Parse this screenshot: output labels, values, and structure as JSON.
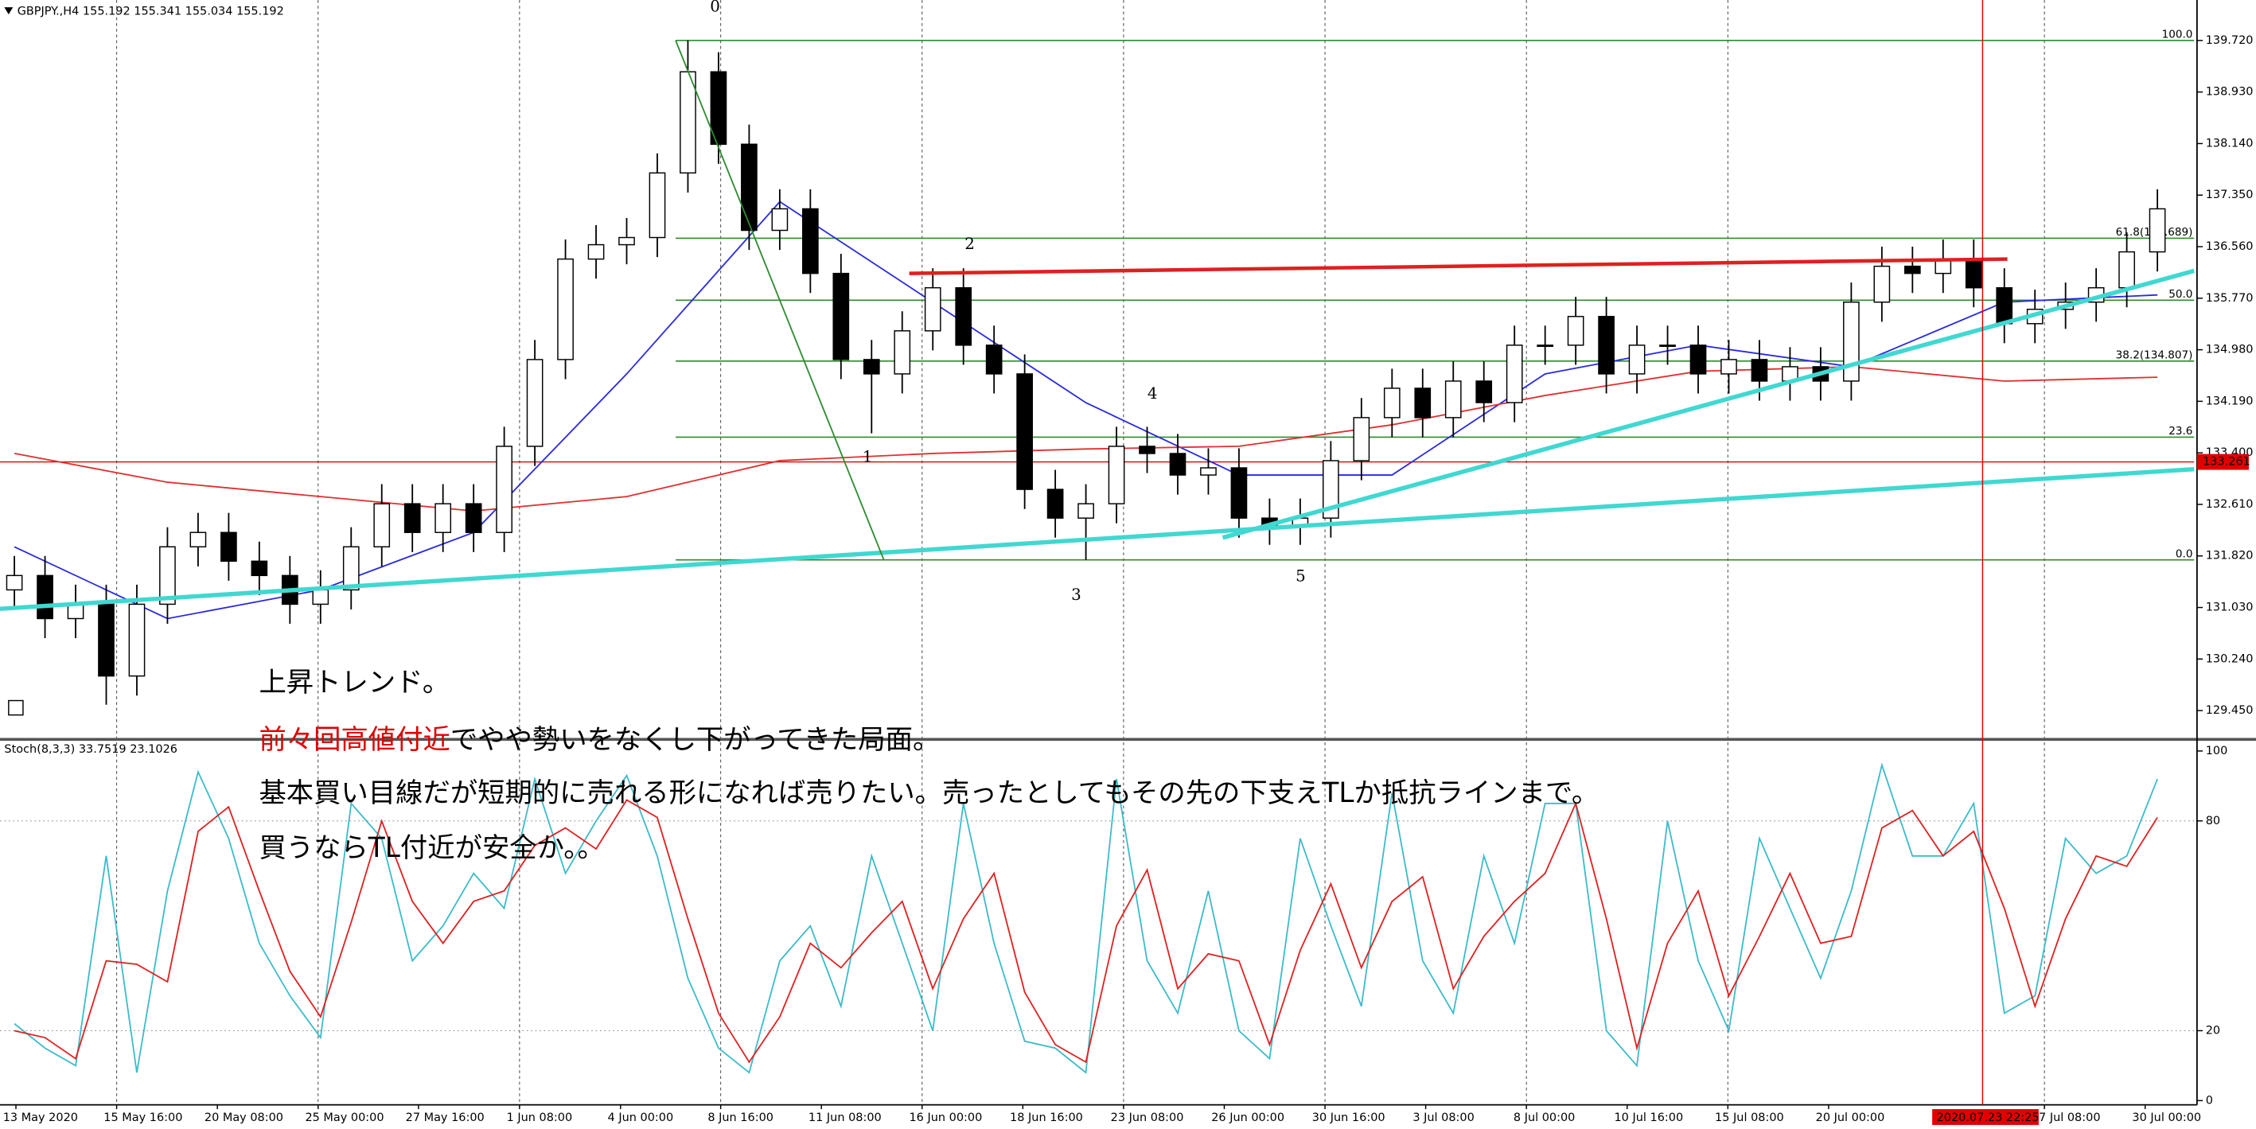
{
  "chart_data": [
    {
      "type": "candlestick",
      "title": "GBPJPY.,H4  155.192 155.341 155.034 155.192",
      "xlim": [
        -0.47,
        71.2
      ],
      "ylim": [
        129.03,
        140.34
      ],
      "yticks": [
        {
          "value": 139.72,
          "label": "139.720"
        },
        {
          "value": 138.93,
          "label": "138.930"
        },
        {
          "value": 138.14,
          "label": "138.140"
        },
        {
          "value": 137.35,
          "label": "137.350"
        },
        {
          "value": 136.56,
          "label": "136.560"
        },
        {
          "value": 135.77,
          "label": "135.770"
        },
        {
          "value": 134.98,
          "label": "134.980"
        },
        {
          "value": 134.19,
          "label": "134.190"
        },
        {
          "value": 133.4,
          "label": "133.400"
        },
        {
          "value": 132.61,
          "label": "132.610"
        },
        {
          "value": 131.82,
          "label": "131.820"
        },
        {
          "value": 131.03,
          "label": "131.030"
        },
        {
          "value": 130.24,
          "label": "130.240"
        },
        {
          "value": 129.45,
          "label": "129.450"
        }
      ],
      "up_color": "#ffffff",
      "down_color": "#000000",
      "open": [
        131.3,
        131.52,
        130.86,
        131.08,
        129.98,
        131.08,
        131.96,
        132.18,
        131.74,
        131.52,
        131.08,
        131.3,
        131.96,
        132.62,
        132.18,
        132.62,
        132.18,
        133.5,
        134.83,
        136.37,
        136.59,
        136.7,
        137.69,
        139.24,
        138.13,
        136.81,
        137.14,
        136.15,
        134.83,
        134.61,
        135.27,
        135.93,
        135.05,
        134.61,
        132.84,
        132.4,
        132.62,
        133.5,
        133.39,
        133.06,
        133.17,
        132.4,
        132.29,
        132.4,
        133.28,
        133.94,
        134.39,
        133.94,
        134.5,
        134.17,
        135.05,
        135.05,
        135.49,
        134.61,
        135.05,
        135.05,
        134.61,
        134.83,
        134.5,
        134.72,
        134.5,
        135.71,
        136.26,
        136.15,
        136.37,
        135.93,
        135.38,
        135.6,
        135.71,
        135.93,
        136.48
      ],
      "high": [
        131.82,
        131.82,
        131.38,
        131.38,
        131.38,
        132.26,
        132.48,
        132.48,
        132.04,
        131.82,
        131.6,
        132.26,
        132.92,
        132.92,
        132.92,
        132.92,
        133.8,
        135.13,
        136.67,
        136.89,
        137.0,
        137.99,
        139.72,
        139.54,
        138.43,
        137.44,
        137.44,
        136.45,
        135.13,
        135.57,
        136.23,
        136.23,
        135.35,
        134.91,
        133.14,
        132.92,
        133.8,
        133.8,
        133.69,
        133.47,
        133.47,
        132.7,
        132.7,
        133.58,
        134.24,
        134.69,
        134.69,
        134.8,
        134.8,
        135.35,
        135.35,
        135.79,
        135.79,
        135.35,
        135.35,
        135.35,
        135.13,
        135.13,
        135.02,
        135.02,
        136.01,
        136.56,
        136.56,
        136.67,
        136.67,
        136.23,
        135.9,
        136.01,
        136.23,
        136.78,
        137.44
      ],
      "low": [
        131.0,
        130.56,
        130.56,
        129.54,
        129.68,
        130.78,
        131.66,
        131.44,
        131.22,
        130.78,
        130.78,
        131.0,
        131.66,
        131.88,
        131.88,
        131.88,
        131.88,
        133.2,
        134.53,
        136.07,
        136.29,
        136.4,
        137.39,
        137.83,
        136.51,
        136.51,
        135.85,
        134.53,
        133.7,
        134.31,
        134.97,
        134.75,
        134.31,
        132.54,
        132.1,
        131.76,
        132.32,
        133.09,
        132.76,
        132.76,
        132.1,
        131.99,
        131.99,
        132.1,
        132.98,
        133.64,
        133.64,
        133.64,
        133.87,
        133.87,
        134.75,
        134.75,
        134.31,
        134.31,
        134.75,
        134.31,
        134.31,
        134.2,
        134.2,
        134.2,
        134.2,
        135.41,
        135.85,
        135.85,
        135.63,
        135.08,
        135.08,
        135.3,
        135.41,
        135.63,
        136.18
      ],
      "close": [
        131.52,
        130.86,
        131.08,
        129.98,
        131.08,
        131.96,
        132.18,
        131.74,
        131.52,
        131.08,
        131.3,
        131.96,
        132.62,
        132.18,
        132.62,
        132.18,
        133.5,
        134.83,
        136.37,
        136.59,
        136.7,
        137.69,
        139.24,
        138.13,
        136.81,
        137.14,
        136.15,
        134.83,
        134.61,
        135.27,
        135.93,
        135.05,
        134.61,
        132.84,
        132.4,
        132.62,
        133.5,
        133.39,
        133.06,
        133.17,
        132.4,
        132.29,
        132.4,
        133.28,
        133.94,
        134.39,
        133.94,
        134.5,
        134.17,
        135.05,
        135.05,
        135.49,
        134.61,
        135.05,
        135.05,
        134.61,
        134.83,
        134.5,
        134.72,
        134.5,
        135.71,
        136.26,
        136.15,
        136.37,
        135.93,
        135.38,
        135.6,
        135.71,
        135.93,
        136.48,
        137.14
      ],
      "lines": [
        {
          "color": "#2a2ae0",
          "x": [
            0,
            5,
            10,
            15,
            20,
            25,
            30,
            35,
            40,
            45,
            50,
            55,
            60,
            65,
            70
          ],
          "values": [
            131.96,
            130.86,
            131.3,
            132.18,
            134.61,
            137.25,
            135.71,
            134.17,
            133.06,
            133.06,
            134.61,
            135.05,
            134.72,
            135.71,
            135.82
          ]
        },
        {
          "color": "#e03030",
          "x": [
            0,
            5,
            10,
            15,
            20,
            25,
            30,
            35,
            40,
            45,
            50,
            55,
            60,
            65,
            70
          ],
          "values": [
            133.39,
            132.95,
            132.73,
            132.51,
            132.73,
            133.28,
            133.39,
            133.46,
            133.5,
            133.83,
            134.28,
            134.65,
            134.72,
            134.5,
            134.56
          ]
        }
      ],
      "fibonacci_color": "#2e8b2e",
      "fibonacci_start": 21.6,
      "fibonacci": [
        {
          "label": "100.0",
          "value": 139.72
        },
        {
          "label": "61.8(136.689)",
          "value": 136.689
        },
        {
          "label": "50.0",
          "value": 135.74
        },
        {
          "label": "38.2(134.807)",
          "value": 134.807
        },
        {
          "label": "23.6",
          "value": 133.64
        },
        {
          "label": "0.0",
          "value": 131.76
        }
      ],
      "trendlines": [
        {
          "color": "#40d8d0",
          "width": 3,
          "x": [
            -0.47,
            71.2
          ],
          "y": [
            131.01,
            133.15
          ]
        },
        {
          "color": "#40d8d0",
          "width": 3,
          "x": [
            39.47,
            71.2
          ],
          "y": [
            132.1,
            136.19
          ]
        },
        {
          "color": "#e02020",
          "width": 2.5,
          "x": [
            29.23,
            65.1
          ],
          "y": [
            136.15,
            136.37
          ]
        },
        {
          "color": "#2e8b2e",
          "width": 1,
          "x": [
            21.6,
            28.4
          ],
          "y": [
            139.72,
            131.76
          ]
        }
      ],
      "price_line": {
        "value": 133.261,
        "color": "#e00000"
      },
      "wave_labels": [
        "0",
        "1",
        "2",
        "3",
        "4",
        "5"
      ],
      "annotations": [
        [
          {
            "text": "上昇トレンド。",
            "color": "#000000"
          }
        ],
        [
          {
            "text": "前々回高値付近",
            "color": "#e00000"
          },
          {
            "text": "でやや勢いをなくし下がってきた局面。",
            "color": "#000000"
          }
        ],
        [
          {
            "text": "基本買い目線だが短期的に売れる形になれば売りたい。売ったとしてもその先の下支えTLか抵抗ラインまで。",
            "color": "#000000"
          }
        ],
        [
          {
            "text": "買うならTL付近が安全か。。",
            "color": "#000000"
          }
        ]
      ]
    },
    {
      "type": "line",
      "title": "Stoch(8,3,3) 33.7519 23.1026",
      "xlim": [
        -0.47,
        71.2
      ],
      "ylim": [
        -1.2,
        102.9
      ],
      "yticks": [
        0,
        20,
        80,
        100
      ],
      "grid": true,
      "xticks": [
        {
          "value": 0.05,
          "label": "13 May 2020"
        },
        {
          "value": 3.34,
          "label": "15 May 16:00"
        },
        {
          "value": 6.63,
          "label": "20 May 08:00"
        },
        {
          "value": 9.92,
          "label": "25 May 00:00"
        },
        {
          "value": 13.2,
          "label": "27 May 16:00"
        },
        {
          "value": 16.5,
          "label": "1 Jun 08:00"
        },
        {
          "value": 19.8,
          "label": "4 Jun 00:00"
        },
        {
          "value": 23.07,
          "label": "8 Jun 16:00"
        },
        {
          "value": 26.36,
          "label": "11 Jun 08:00"
        },
        {
          "value": 29.65,
          "label": "16 Jun 00:00"
        },
        {
          "value": 32.94,
          "label": "18 Jun 16:00"
        },
        {
          "value": 36.23,
          "label": "23 Jun 08:00"
        },
        {
          "value": 39.52,
          "label": "26 Jun 00:00"
        },
        {
          "value": 42.81,
          "label": "30 Jun 16:00"
        },
        {
          "value": 46.1,
          "label": "3 Jul 08:00"
        },
        {
          "value": 49.39,
          "label": "8 Jul 00:00"
        },
        {
          "value": 52.68,
          "label": "10 Jul 16:00"
        },
        {
          "value": 55.97,
          "label": "15 Jul 08:00"
        },
        {
          "value": 59.26,
          "label": "20 Jul 00:00"
        },
        {
          "value": 66.31,
          "label": "27 Jul 08:00"
        },
        {
          "value": 69.6,
          "label": "30 Jul 00:00"
        }
      ],
      "cursor": {
        "value": 64.29,
        "label": "2020.07.23 22:25",
        "color": "#e00000"
      },
      "series": [
        {
          "color": "#3cbcc8",
          "values": [
            22,
            15,
            10,
            70,
            8,
            60,
            94,
            75,
            45,
            30,
            18,
            85,
            75,
            40,
            50,
            65,
            55,
            92,
            65,
            80,
            93,
            70,
            35,
            15,
            8,
            40,
            50,
            27,
            70,
            45,
            20,
            85,
            45,
            17,
            15,
            8,
            92,
            40,
            25,
            60,
            20,
            12,
            75,
            50,
            27,
            88,
            40,
            25,
            70,
            45,
            85,
            85,
            20,
            10,
            80,
            40,
            20,
            75,
            55,
            35,
            60,
            96,
            70,
            70,
            85,
            25,
            30,
            75,
            65,
            70,
            92
          ]
        },
        {
          "color": "#e02020",
          "values": [
            20,
            18,
            12,
            40,
            39,
            34,
            77,
            84,
            60,
            37,
            24,
            51,
            80,
            57,
            45,
            57,
            60,
            73,
            78,
            72,
            86,
            81,
            52,
            25,
            11,
            24,
            45,
            38,
            48,
            57,
            32,
            52,
            65,
            31,
            16,
            11,
            50,
            66,
            32,
            42,
            40,
            16,
            43,
            62,
            38,
            57,
            64,
            32,
            47,
            57,
            65,
            85,
            52,
            15,
            45,
            60,
            30,
            47,
            65,
            45,
            47,
            78,
            83,
            70,
            77,
            55,
            27,
            52,
            70,
            67,
            81
          ]
        }
      ]
    }
  ]
}
